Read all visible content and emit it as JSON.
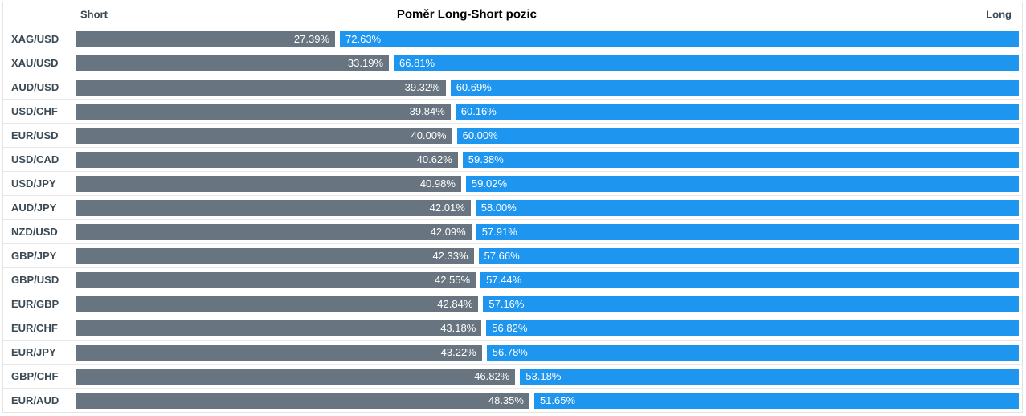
{
  "header": {
    "short_label": "Short",
    "title": "Poměr Long-Short pozic",
    "long_label": "Long"
  },
  "colors": {
    "short_bar": "#68747f",
    "long_bar": "#1e95ef",
    "pair_label": "#3b4a54",
    "separator": "#e8e8e8"
  },
  "rows": [
    {
      "pair": "XAG/USD",
      "short_pct": 27.39,
      "long_pct": 72.63,
      "short_label": "27.39%",
      "long_label": "72.63%"
    },
    {
      "pair": "XAU/USD",
      "short_pct": 33.19,
      "long_pct": 66.81,
      "short_label": "33.19%",
      "long_label": "66.81%"
    },
    {
      "pair": "AUD/USD",
      "short_pct": 39.32,
      "long_pct": 60.69,
      "short_label": "39.32%",
      "long_label": "60.69%"
    },
    {
      "pair": "USD/CHF",
      "short_pct": 39.84,
      "long_pct": 60.16,
      "short_label": "39.84%",
      "long_label": "60.16%"
    },
    {
      "pair": "EUR/USD",
      "short_pct": 40.0,
      "long_pct": 60.0,
      "short_label": "40.00%",
      "long_label": "60.00%"
    },
    {
      "pair": "USD/CAD",
      "short_pct": 40.62,
      "long_pct": 59.38,
      "short_label": "40.62%",
      "long_label": "59.38%"
    },
    {
      "pair": "USD/JPY",
      "short_pct": 40.98,
      "long_pct": 59.02,
      "short_label": "40.98%",
      "long_label": "59.02%"
    },
    {
      "pair": "AUD/JPY",
      "short_pct": 42.01,
      "long_pct": 58.0,
      "short_label": "42.01%",
      "long_label": "58.00%"
    },
    {
      "pair": "NZD/USD",
      "short_pct": 42.09,
      "long_pct": 57.91,
      "short_label": "42.09%",
      "long_label": "57.91%"
    },
    {
      "pair": "GBP/JPY",
      "short_pct": 42.33,
      "long_pct": 57.66,
      "short_label": "42.33%",
      "long_label": "57.66%"
    },
    {
      "pair": "GBP/USD",
      "short_pct": 42.55,
      "long_pct": 57.44,
      "short_label": "42.55%",
      "long_label": "57.44%"
    },
    {
      "pair": "EUR/GBP",
      "short_pct": 42.84,
      "long_pct": 57.16,
      "short_label": "42.84%",
      "long_label": "57.16%"
    },
    {
      "pair": "EUR/CHF",
      "short_pct": 43.18,
      "long_pct": 56.82,
      "short_label": "43.18%",
      "long_label": "56.82%"
    },
    {
      "pair": "EUR/JPY",
      "short_pct": 43.22,
      "long_pct": 56.78,
      "short_label": "43.22%",
      "long_label": "56.78%"
    },
    {
      "pair": "GBP/CHF",
      "short_pct": 46.82,
      "long_pct": 53.18,
      "short_label": "46.82%",
      "long_label": "53.18%"
    },
    {
      "pair": "EUR/AUD",
      "short_pct": 48.35,
      "long_pct": 51.65,
      "short_label": "48.35%",
      "long_label": "51.65%"
    }
  ],
  "chart_data": {
    "type": "bar",
    "orientation": "horizontal",
    "stacked": true,
    "title": "Poměr Long-Short pozic",
    "categories": [
      "XAG/USD",
      "XAU/USD",
      "AUD/USD",
      "USD/CHF",
      "EUR/USD",
      "USD/CAD",
      "USD/JPY",
      "AUD/JPY",
      "NZD/USD",
      "GBP/JPY",
      "GBP/USD",
      "EUR/GBP",
      "EUR/CHF",
      "EUR/JPY",
      "GBP/CHF",
      "EUR/AUD"
    ],
    "series": [
      {
        "name": "Short",
        "color": "#68747f",
        "values": [
          27.39,
          33.19,
          39.32,
          39.84,
          40.0,
          40.62,
          40.98,
          42.01,
          42.09,
          42.33,
          42.55,
          42.84,
          43.18,
          43.22,
          46.82,
          48.35
        ]
      },
      {
        "name": "Long",
        "color": "#1e95ef",
        "values": [
          72.63,
          66.81,
          60.69,
          60.16,
          60.0,
          59.38,
          59.02,
          58.0,
          57.91,
          57.66,
          57.44,
          57.16,
          56.82,
          56.78,
          53.18,
          51.65
        ]
      }
    ],
    "value_unit": "%",
    "xlim": [
      0,
      100
    ],
    "data_labels": "inside",
    "legend_position": "top-edges",
    "grid": false
  }
}
